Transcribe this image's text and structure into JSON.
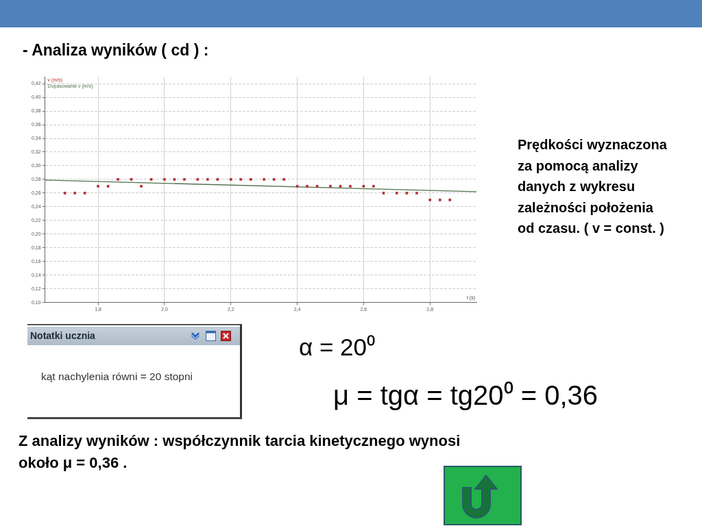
{
  "chart_data": {
    "type": "scatter",
    "title": "- Analiza wyników ( cd ) :",
    "xlabel": "t (s)",
    "annotations": [
      "Prędkości wyznaczona za pomocą analizy danych z wykresu zależności położenia od czasu. ( v = const. )",
      "Notatki ucznia",
      "kąt nachylenia równi = 20 stopni",
      "α = 20⁰",
      "μ = tgα = tg20⁰ = 0,36",
      "Z analizy wyników : współczynnik tarcia kinetycznego wynosi około μ = 0,36 ."
    ],
    "series": [
      {
        "name": "v (m/s)",
        "color": "#b22d2d",
        "x": [
          1.7,
          1.73,
          1.76,
          1.8,
          1.83,
          1.86,
          1.9,
          1.93,
          1.96,
          2.0,
          2.03,
          2.06,
          2.1,
          2.13,
          2.16,
          2.2,
          2.23,
          2.26,
          2.3,
          2.33,
          2.36,
          2.4,
          2.43,
          2.46,
          2.5,
          2.53,
          2.56,
          2.6,
          2.63,
          2.66,
          2.7,
          2.73,
          2.76,
          2.8,
          2.83,
          2.86
        ],
        "values": [
          0.26,
          0.26,
          0.26,
          0.27,
          0.27,
          0.28,
          0.28,
          0.27,
          0.28,
          0.28,
          0.28,
          0.28,
          0.28,
          0.28,
          0.28,
          0.28,
          0.28,
          0.28,
          0.28,
          0.28,
          0.28,
          0.27,
          0.27,
          0.27,
          0.27,
          0.27,
          0.27,
          0.27,
          0.27,
          0.26,
          0.26,
          0.26,
          0.26,
          0.25,
          0.25,
          0.25
        ]
      },
      {
        "name": "Dopasowanie v (m/s)",
        "color": "#4f6f4f",
        "type": "line",
        "marker": "none",
        "x": [
          1.64,
          2.94
        ],
        "values": [
          0.279,
          0.262
        ]
      }
    ],
    "xlim": [
      1.64,
      2.94
    ],
    "ylim": [
      0.1,
      0.43
    ],
    "xticks": [
      {
        "value": 1.8,
        "label": "1,8"
      },
      {
        "value": 2.0,
        "label": "2,0"
      },
      {
        "value": 2.2,
        "label": "2,2"
      },
      {
        "value": 2.4,
        "label": "2,4"
      },
      {
        "value": 2.6,
        "label": "2,6"
      },
      {
        "value": 2.8,
        "label": "2,8"
      }
    ],
    "yticks": [
      {
        "value": 0.1,
        "label": "0,10"
      },
      {
        "value": 0.12,
        "label": "0,12"
      },
      {
        "value": 0.14,
        "label": "0,14"
      },
      {
        "value": 0.16,
        "label": "0,16"
      },
      {
        "value": 0.18,
        "label": "0,18"
      },
      {
        "value": 0.2,
        "label": "0,20"
      },
      {
        "value": 0.22,
        "label": "0,22"
      },
      {
        "value": 0.24,
        "label": "0,24"
      },
      {
        "value": 0.26,
        "label": "0,26"
      },
      {
        "value": 0.28,
        "label": "0,28"
      },
      {
        "value": 0.3,
        "label": "0,30"
      },
      {
        "value": 0.32,
        "label": "0,32"
      },
      {
        "value": 0.34,
        "label": "0,34"
      },
      {
        "value": 0.36,
        "label": "0,36"
      },
      {
        "value": 0.38,
        "label": "0,38"
      },
      {
        "value": 0.4,
        "label": "0,40"
      },
      {
        "value": 0.42,
        "label": "0,42"
      }
    ],
    "grid": true,
    "legend": "top left",
    "marker": "square"
  }
}
